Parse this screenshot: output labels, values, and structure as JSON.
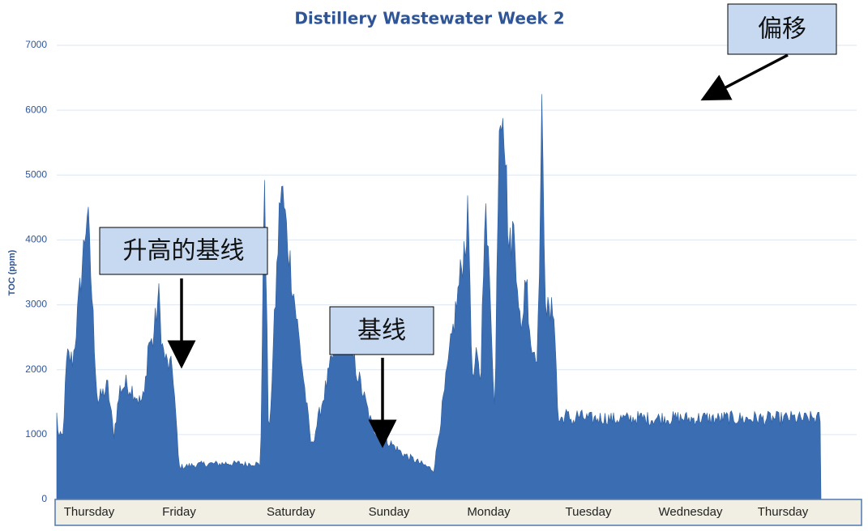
{
  "chart_data": {
    "type": "area",
    "title": "Distillery Wastewater Week 2",
    "ylabel": "TOC (ppm)",
    "xlabel": "",
    "ylim": [
      0,
      7000
    ],
    "yticks": [
      0,
      1000,
      2000,
      3000,
      4000,
      5000,
      6000,
      7000
    ],
    "xticks": [
      "Thursday",
      "Friday",
      "Saturday",
      "Sunday",
      "Monday",
      "Tuesday",
      "Wednesday",
      "Thursday"
    ],
    "grid": true,
    "legend": "none",
    "colors": {
      "fill": "#3b6db3",
      "grid": "#dce6f2",
      "title": "#2f5597",
      "axis_band": "#f1efe3",
      "annotation_box": "#c6d9f1"
    },
    "x_unit": "day",
    "x": [
      0.0,
      0.02,
      0.06,
      0.1,
      0.16,
      0.22,
      0.3,
      0.4,
      0.5,
      0.56,
      0.62,
      0.68,
      0.74,
      0.78,
      0.82,
      0.86,
      0.9,
      0.94,
      1.0,
      1.04,
      1.08,
      1.14,
      1.2,
      1.3,
      1.4,
      1.5,
      1.6,
      1.68,
      1.74,
      1.8,
      1.84,
      1.88,
      1.92,
      1.96,
      2.0,
      2.04,
      2.08,
      2.2,
      2.5,
      2.8,
      3.1,
      3.4,
      3.7,
      4.0,
      4.04,
      4.08,
      4.12,
      4.16,
      4.2,
      4.26,
      4.3,
      4.34,
      4.38,
      4.44,
      4.48,
      4.52,
      4.56,
      4.6,
      4.66,
      4.72,
      4.76,
      4.8,
      4.84,
      4.88,
      4.92,
      4.96,
      5.0,
      5.04,
      5.08,
      5.1,
      5.14,
      5.18,
      5.2,
      5.24,
      5.3,
      5.36,
      5.42,
      5.48,
      5.54,
      5.6,
      5.66,
      5.72,
      5.78,
      5.84,
      5.9,
      5.96,
      6.0,
      6.02,
      6.06,
      6.1,
      6.14,
      6.18,
      6.22,
      6.28,
      6.34,
      6.4,
      6.46,
      6.52,
      6.58,
      6.64,
      6.7,
      6.76,
      6.82,
      6.86,
      6.9,
      6.94,
      6.98,
      7.0,
      7.02,
      7.06,
      7.1,
      7.14,
      7.2,
      7.26,
      7.32,
      7.38,
      7.42,
      7.46,
      7.5
    ],
    "y": [
      1300,
      950,
      980,
      2200,
      2150,
      3100,
      4500,
      1500,
      1750,
      1000,
      1700,
      1780,
      1700,
      1600,
      1500,
      1600,
      2450,
      2400,
      3150,
      2300,
      2100,
      2000,
      500,
      520,
      540,
      550,
      550,
      560,
      550,
      560,
      540,
      550,
      560,
      550,
      520,
      5100,
      800,
      4900,
      800,
      2800,
      1100,
      700,
      450,
      3900,
      4400,
      1800,
      2200,
      1800,
      4600,
      3000,
      1200,
      5900,
      6250,
      3800,
      4200,
      3500,
      2400,
      3600,
      2300,
      2300,
      5800,
      3000,
      2800,
      3000,
      1200,
      1250,
      1300,
      1250,
      1200,
      1300,
      1280,
      1260,
      1250,
      1240,
      1250,
      1260,
      1250,
      1230,
      1250,
      1240,
      1250,
      1260,
      1250,
      1240,
      1250,
      1260,
      1250,
      1250,
      1250,
      1260,
      1250,
      1250,
      1240,
      1250,
      1260,
      1250,
      1240,
      1250,
      1260,
      1250,
      1250,
      1240,
      1250,
      1260,
      1250,
      1240,
      1250,
      1260,
      1250,
      1250,
      1240,
      1250,
      1260,
      1250,
      1240,
      1250,
      1260,
      1250,
      1250
    ],
    "annotations": [
      {
        "label": "升高的基线",
        "target_x": 1.15,
        "target_y": 1900
      },
      {
        "label": "基线",
        "target_x": 3.0,
        "target_y": 900
      },
      {
        "label": "偏移",
        "target_x": 6.05,
        "target_y": 6250
      }
    ]
  }
}
